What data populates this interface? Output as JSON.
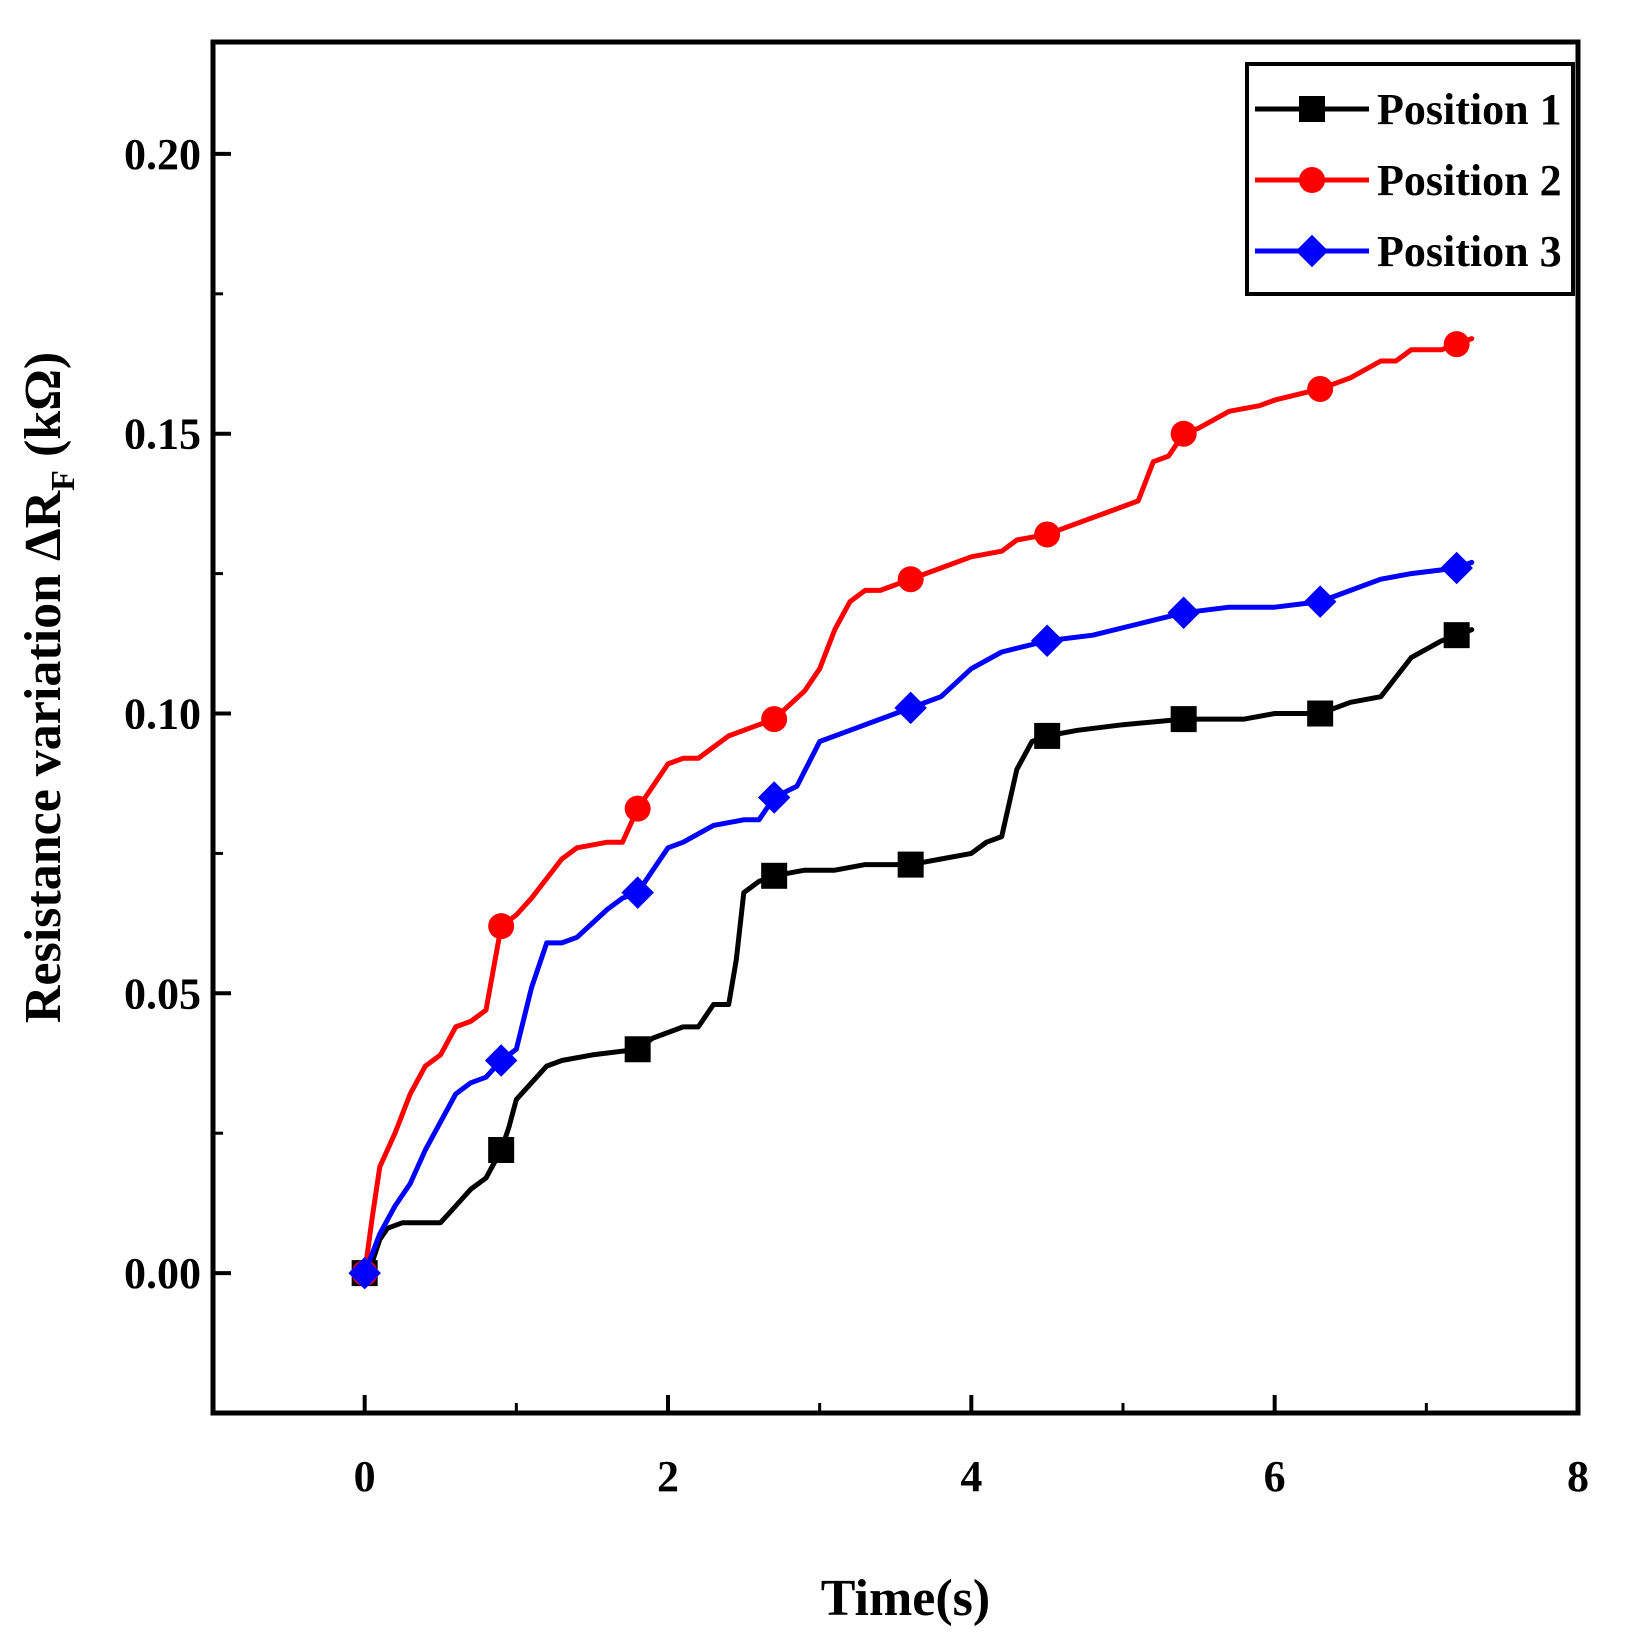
{
  "chart_data": {
    "type": "line",
    "title": "",
    "xlabel": "Time(s)",
    "ylabel_main": "Resistance variation ΔR",
    "ylabel_sub": "F",
    "ylabel_unit": " (kΩ)",
    "xlim": [
      -1,
      8
    ],
    "ylim": [
      -0.025,
      0.22
    ],
    "x_ticks": [
      0,
      2,
      4,
      6,
      8
    ],
    "x_tick_labels": [
      "0",
      "2",
      "4",
      "6",
      "8"
    ],
    "y_ticks": [
      0.0,
      0.05,
      0.1,
      0.15,
      0.2
    ],
    "y_tick_labels": [
      "0.00",
      "0.05",
      "0.10",
      "0.15",
      "0.20"
    ],
    "grid": false,
    "legend_position": "top-right",
    "series": [
      {
        "name": "Position 1",
        "color": "#000000",
        "marker": "square",
        "points": [
          [
            0,
            0
          ],
          [
            0.05,
            0.002
          ],
          [
            0.1,
            0.006
          ],
          [
            0.15,
            0.008
          ],
          [
            0.25,
            0.009
          ],
          [
            0.5,
            0.009
          ],
          [
            0.6,
            0.012
          ],
          [
            0.7,
            0.015
          ],
          [
            0.8,
            0.017
          ],
          [
            0.9,
            0.022
          ],
          [
            0.95,
            0.026
          ],
          [
            1.0,
            0.031
          ],
          [
            1.1,
            0.034
          ],
          [
            1.2,
            0.037
          ],
          [
            1.3,
            0.038
          ],
          [
            1.5,
            0.039
          ],
          [
            1.8,
            0.04
          ],
          [
            1.9,
            0.042
          ],
          [
            2.1,
            0.044
          ],
          [
            2.2,
            0.044
          ],
          [
            2.3,
            0.048
          ],
          [
            2.4,
            0.048
          ],
          [
            2.45,
            0.056
          ],
          [
            2.5,
            0.068
          ],
          [
            2.6,
            0.07
          ],
          [
            2.7,
            0.071
          ],
          [
            2.9,
            0.072
          ],
          [
            3.1,
            0.072
          ],
          [
            3.3,
            0.073
          ],
          [
            3.6,
            0.073
          ],
          [
            3.8,
            0.074
          ],
          [
            4.0,
            0.075
          ],
          [
            4.1,
            0.077
          ],
          [
            4.2,
            0.078
          ],
          [
            4.3,
            0.09
          ],
          [
            4.4,
            0.095
          ],
          [
            4.5,
            0.096
          ],
          [
            4.7,
            0.097
          ],
          [
            5.0,
            0.098
          ],
          [
            5.4,
            0.099
          ],
          [
            5.8,
            0.099
          ],
          [
            6.0,
            0.1
          ],
          [
            6.3,
            0.1
          ],
          [
            6.5,
            0.102
          ],
          [
            6.7,
            0.103
          ],
          [
            6.9,
            0.11
          ],
          [
            7.1,
            0.113
          ],
          [
            7.2,
            0.114
          ],
          [
            7.3,
            0.115
          ]
        ],
        "markers": [
          [
            0,
            0
          ],
          [
            0.9,
            0.022
          ],
          [
            1.8,
            0.04
          ],
          [
            2.7,
            0.071
          ],
          [
            3.6,
            0.073
          ],
          [
            4.5,
            0.096
          ],
          [
            5.4,
            0.099
          ],
          [
            6.3,
            0.1
          ],
          [
            7.2,
            0.114
          ]
        ]
      },
      {
        "name": "Position 2",
        "color": "#ff0000",
        "marker": "circle",
        "points": [
          [
            0,
            0
          ],
          [
            0.05,
            0.01
          ],
          [
            0.1,
            0.019
          ],
          [
            0.2,
            0.025
          ],
          [
            0.3,
            0.032
          ],
          [
            0.4,
            0.037
          ],
          [
            0.5,
            0.039
          ],
          [
            0.6,
            0.044
          ],
          [
            0.7,
            0.045
          ],
          [
            0.8,
            0.047
          ],
          [
            0.9,
            0.062
          ],
          [
            1.0,
            0.064
          ],
          [
            1.1,
            0.067
          ],
          [
            1.3,
            0.074
          ],
          [
            1.4,
            0.076
          ],
          [
            1.6,
            0.077
          ],
          [
            1.7,
            0.077
          ],
          [
            1.8,
            0.083
          ],
          [
            1.9,
            0.087
          ],
          [
            2.0,
            0.091
          ],
          [
            2.1,
            0.092
          ],
          [
            2.2,
            0.092
          ],
          [
            2.4,
            0.096
          ],
          [
            2.6,
            0.098
          ],
          [
            2.7,
            0.099
          ],
          [
            2.9,
            0.104
          ],
          [
            3.0,
            0.108
          ],
          [
            3.1,
            0.115
          ],
          [
            3.2,
            0.12
          ],
          [
            3.3,
            0.122
          ],
          [
            3.4,
            0.122
          ],
          [
            3.6,
            0.124
          ],
          [
            3.8,
            0.126
          ],
          [
            4.0,
            0.128
          ],
          [
            4.2,
            0.129
          ],
          [
            4.3,
            0.131
          ],
          [
            4.5,
            0.132
          ],
          [
            4.7,
            0.134
          ],
          [
            4.9,
            0.136
          ],
          [
            5.0,
            0.137
          ],
          [
            5.1,
            0.138
          ],
          [
            5.2,
            0.145
          ],
          [
            5.3,
            0.146
          ],
          [
            5.4,
            0.15
          ],
          [
            5.5,
            0.151
          ],
          [
            5.7,
            0.154
          ],
          [
            5.9,
            0.155
          ],
          [
            6.0,
            0.156
          ],
          [
            6.3,
            0.158
          ],
          [
            6.5,
            0.16
          ],
          [
            6.7,
            0.163
          ],
          [
            6.8,
            0.163
          ],
          [
            6.9,
            0.165
          ],
          [
            7.1,
            0.165
          ],
          [
            7.2,
            0.166
          ],
          [
            7.3,
            0.167
          ]
        ],
        "markers": [
          [
            0,
            0
          ],
          [
            0.9,
            0.062
          ],
          [
            1.8,
            0.083
          ],
          [
            2.7,
            0.099
          ],
          [
            3.6,
            0.124
          ],
          [
            4.5,
            0.132
          ],
          [
            5.4,
            0.15
          ],
          [
            6.3,
            0.158
          ],
          [
            7.2,
            0.166
          ]
        ]
      },
      {
        "name": "Position 3",
        "color": "#0000ff",
        "marker": "diamond",
        "points": [
          [
            0,
            0
          ],
          [
            0.1,
            0.007
          ],
          [
            0.2,
            0.012
          ],
          [
            0.3,
            0.016
          ],
          [
            0.4,
            0.022
          ],
          [
            0.5,
            0.027
          ],
          [
            0.6,
            0.032
          ],
          [
            0.7,
            0.034
          ],
          [
            0.8,
            0.035
          ],
          [
            0.9,
            0.038
          ],
          [
            1.0,
            0.04
          ],
          [
            1.1,
            0.051
          ],
          [
            1.2,
            0.059
          ],
          [
            1.3,
            0.059
          ],
          [
            1.4,
            0.06
          ],
          [
            1.6,
            0.065
          ],
          [
            1.7,
            0.067
          ],
          [
            1.8,
            0.068
          ],
          [
            1.9,
            0.072
          ],
          [
            2.0,
            0.076
          ],
          [
            2.1,
            0.077
          ],
          [
            2.3,
            0.08
          ],
          [
            2.5,
            0.081
          ],
          [
            2.6,
            0.081
          ],
          [
            2.7,
            0.085
          ],
          [
            2.85,
            0.087
          ],
          [
            3.0,
            0.095
          ],
          [
            3.2,
            0.097
          ],
          [
            3.5,
            0.1
          ],
          [
            3.6,
            0.101
          ],
          [
            3.8,
            0.103
          ],
          [
            4.0,
            0.108
          ],
          [
            4.2,
            0.111
          ],
          [
            4.5,
            0.113
          ],
          [
            4.8,
            0.114
          ],
          [
            5.1,
            0.116
          ],
          [
            5.4,
            0.118
          ],
          [
            5.7,
            0.119
          ],
          [
            6.0,
            0.119
          ],
          [
            6.3,
            0.12
          ],
          [
            6.5,
            0.122
          ],
          [
            6.7,
            0.124
          ],
          [
            6.9,
            0.125
          ],
          [
            7.2,
            0.126
          ],
          [
            7.3,
            0.127
          ]
        ],
        "markers": [
          [
            0,
            0
          ],
          [
            0.9,
            0.038
          ],
          [
            1.8,
            0.068
          ],
          [
            2.7,
            0.085
          ],
          [
            3.6,
            0.101
          ],
          [
            4.5,
            0.113
          ],
          [
            5.4,
            0.118
          ],
          [
            6.3,
            0.12
          ],
          [
            7.2,
            0.126
          ]
        ]
      }
    ]
  }
}
